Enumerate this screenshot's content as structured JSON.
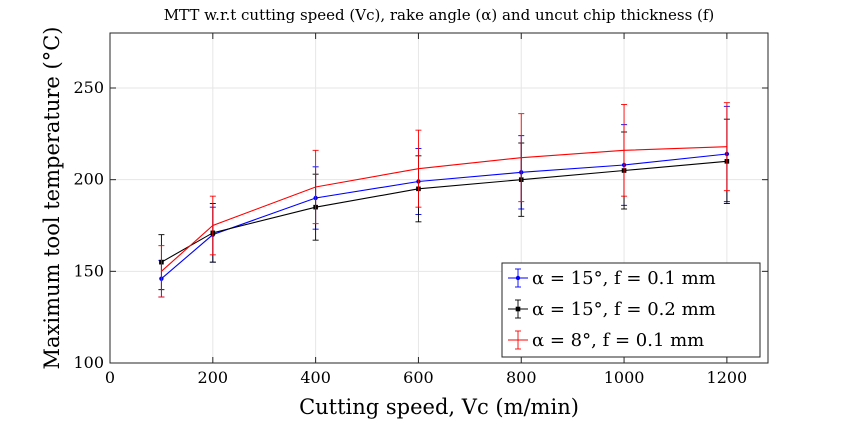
{
  "chart_data": {
    "type": "line",
    "title": "MTT w.r.t cutting speed (Vc), rake angle (α) and uncut chip thickness (f)",
    "xlabel": "Cutting speed, Vc (m/min)",
    "ylabel": "Maximum tool temperature (°C)",
    "xlim": [
      0,
      1280
    ],
    "ylim": [
      100,
      280
    ],
    "xticks": [
      0,
      200,
      400,
      600,
      800,
      1000,
      1200
    ],
    "yticks": [
      100,
      150,
      200,
      250
    ],
    "grid": true,
    "legend_position": "bottom-right",
    "x": [
      100,
      200,
      400,
      600,
      800,
      1000,
      1200
    ],
    "series": [
      {
        "name": "α = 15°, f = 0.1 mm",
        "color": "#0000ff",
        "marker": "dot",
        "values": [
          146,
          170,
          190,
          199,
          204,
          208,
          214
        ],
        "errors": [
          10,
          15,
          17,
          18,
          20,
          22,
          26
        ]
      },
      {
        "name": "α = 15°, f = 0.2 mm",
        "color": "#000000",
        "marker": "square",
        "values": [
          155,
          171,
          185,
          195,
          200,
          205,
          210
        ],
        "errors": [
          15,
          16,
          18,
          18,
          20,
          21,
          23
        ]
      },
      {
        "name": "α = 8°, f = 0.1 mm",
        "color": "#ff0000",
        "marker": "none",
        "values": [
          150,
          175,
          196,
          206,
          212,
          216,
          218
        ],
        "errors": [
          14,
          16,
          20,
          21,
          24,
          25,
          24
        ]
      }
    ]
  }
}
